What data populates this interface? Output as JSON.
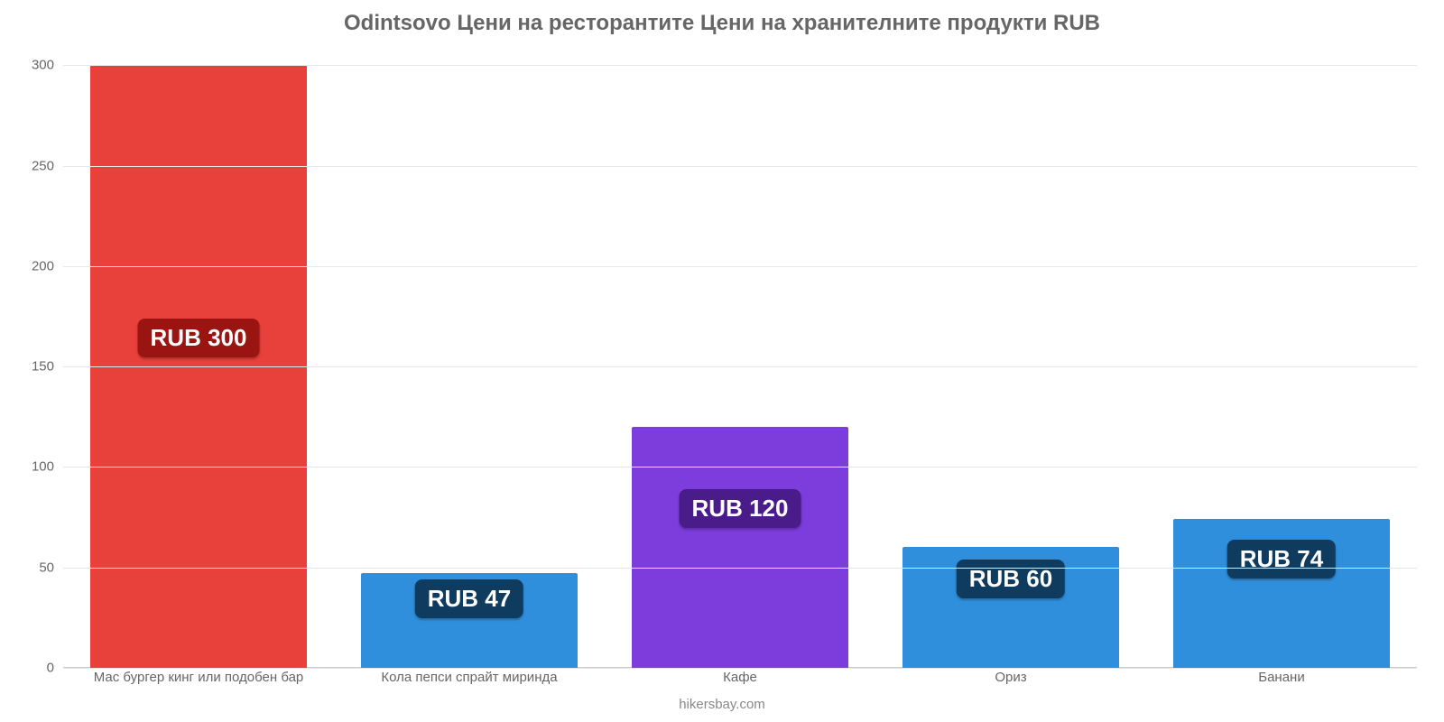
{
  "chart": {
    "type": "bar",
    "title": "Odintsovo Цени на ресторантите Цени на хранителните продукти RUB",
    "title_fontsize": 24,
    "title_color": "#666666",
    "background_color": "#ffffff",
    "grid_color": "#e6e6e6",
    "axis_label_color": "#666666",
    "axis_label_fontsize": 15,
    "ylim": [
      0,
      310
    ],
    "yticks": [
      0,
      50,
      100,
      150,
      200,
      250,
      300
    ],
    "bar_width_pct": 80,
    "value_currency_prefix": "RUB ",
    "value_badge_fontsize": 26,
    "value_badge_text_color": "#ffffff",
    "footer_text": "hikersbay.com",
    "footer_fontsize": 15,
    "footer_color": "#888888",
    "categories": [
      "Мас бургер кинг или подобен бар",
      "Кола пепси спрайт миринда",
      "Кафе",
      "Ориз",
      "Банани"
    ],
    "values": [
      300,
      47,
      120,
      60,
      74
    ],
    "bar_colors": [
      "#e8403a",
      "#2f8fdd",
      "#7d3cdc",
      "#2f8fdd",
      "#2f8fdd"
    ],
    "badge_colors": [
      "#9a1411",
      "#0f3b5f",
      "#4a1c8a",
      "#0f3b5f",
      "#0f3b5f"
    ],
    "badge_y_values": [
      165,
      35,
      80,
      45,
      55
    ]
  }
}
